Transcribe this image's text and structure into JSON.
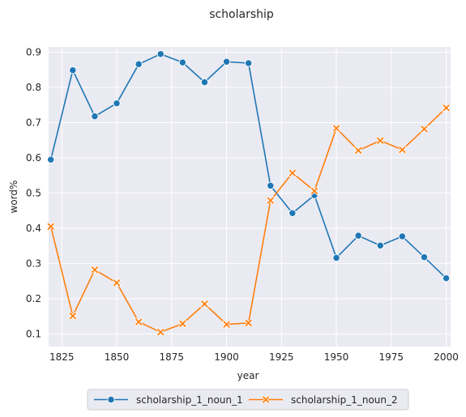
{
  "chart_data": {
    "type": "line",
    "title": "scholarship",
    "xlabel": "year",
    "ylabel": "word%",
    "xlim": [
      1819,
      2002
    ],
    "ylim": [
      0.064,
      0.915
    ],
    "xticks": [
      1825,
      1850,
      1875,
      1900,
      1925,
      1950,
      1975,
      2000
    ],
    "yticks": [
      0.1,
      0.2,
      0.3,
      0.4,
      0.5,
      0.6,
      0.7,
      0.8,
      0.9
    ],
    "x": [
      1820,
      1830,
      1840,
      1850,
      1860,
      1870,
      1880,
      1890,
      1900,
      1910,
      1920,
      1930,
      1940,
      1950,
      1960,
      1970,
      1980,
      1990,
      2000
    ],
    "series": [
      {
        "name": "scholarship_1_noun_1",
        "color": "#1f77b4",
        "marker": "circle",
        "values": [
          0.595,
          0.849,
          0.718,
          0.755,
          0.866,
          0.895,
          0.871,
          0.815,
          0.873,
          0.869,
          0.521,
          0.443,
          0.494,
          0.316,
          0.379,
          0.351,
          0.377,
          0.318,
          0.258
        ]
      },
      {
        "name": "scholarship_1_noun_2",
        "color": "#ff7f0e",
        "marker": "x",
        "values": [
          0.405,
          0.151,
          0.282,
          0.245,
          0.134,
          0.105,
          0.129,
          0.185,
          0.127,
          0.131,
          0.479,
          0.557,
          0.506,
          0.684,
          0.621,
          0.649,
          0.623,
          0.682,
          0.742
        ]
      }
    ],
    "grid": true,
    "legend_position": "bottom-center"
  }
}
